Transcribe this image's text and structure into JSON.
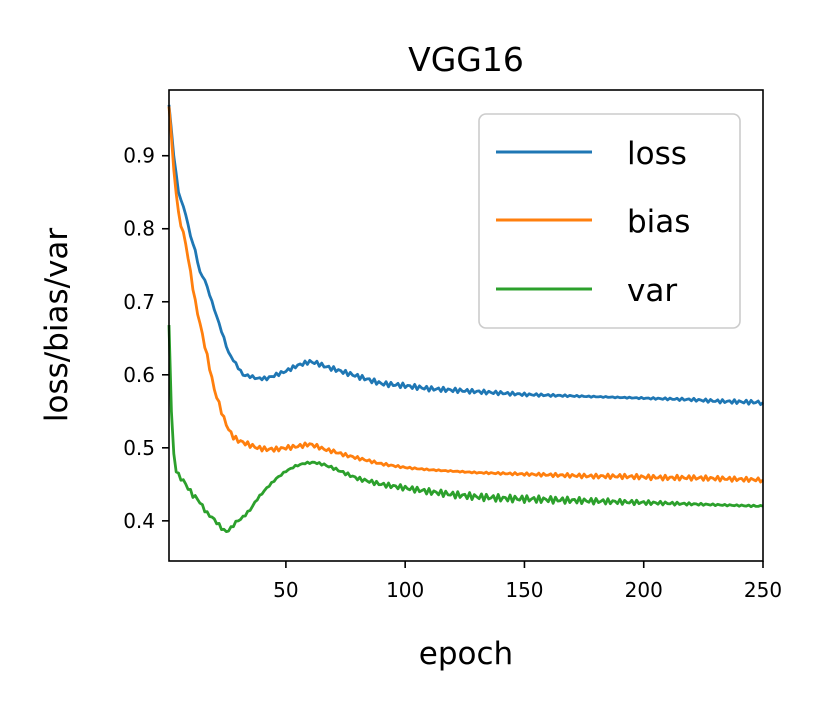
{
  "chart_data": {
    "type": "line",
    "title": "VGG16",
    "xlabel": "epoch",
    "ylabel": "loss/bias/var",
    "xlim": [
      1,
      250
    ],
    "ylim": [
      0.345,
      0.99
    ],
    "xticks": [
      50,
      100,
      150,
      200,
      250
    ],
    "xtick_labels": [
      "50",
      "100",
      "150",
      "200",
      "250"
    ],
    "yticks": [
      0.4,
      0.5,
      0.6,
      0.7,
      0.8,
      0.9
    ],
    "ytick_labels": [
      "0.4",
      "0.5",
      "0.6",
      "0.7",
      "0.8",
      "0.9"
    ],
    "legend_position": "top-right",
    "grid": false,
    "series": [
      {
        "name": "loss",
        "color": "#1f77b4",
        "x": [
          1,
          3,
          5,
          8,
          10,
          12,
          14,
          16,
          18,
          20,
          22,
          24,
          26,
          28,
          30,
          32,
          35,
          38,
          42,
          46,
          50,
          55,
          60,
          63,
          66,
          70,
          75,
          80,
          85,
          90,
          100,
          110,
          120,
          130,
          140,
          150,
          160,
          170,
          180,
          190,
          200,
          210,
          220,
          230,
          240,
          250
        ],
        "y": [
          0.97,
          0.9,
          0.85,
          0.82,
          0.79,
          0.77,
          0.74,
          0.73,
          0.71,
          0.69,
          0.67,
          0.65,
          0.63,
          0.62,
          0.61,
          0.6,
          0.598,
          0.595,
          0.595,
          0.6,
          0.605,
          0.613,
          0.618,
          0.616,
          0.612,
          0.608,
          0.603,
          0.598,
          0.593,
          0.588,
          0.585,
          0.581,
          0.579,
          0.577,
          0.575,
          0.573,
          0.572,
          0.571,
          0.57,
          0.569,
          0.568,
          0.567,
          0.566,
          0.564,
          0.563,
          0.562
        ]
      },
      {
        "name": "bias",
        "color": "#ff7f0e",
        "x": [
          1,
          3,
          5,
          8,
          10,
          12,
          14,
          16,
          18,
          20,
          22,
          24,
          26,
          28,
          30,
          34,
          38,
          42,
          46,
          50,
          55,
          60,
          63,
          66,
          70,
          75,
          80,
          85,
          90,
          100,
          110,
          120,
          130,
          140,
          150,
          160,
          170,
          180,
          190,
          200,
          210,
          220,
          230,
          240,
          250
        ],
        "y": [
          0.97,
          0.88,
          0.82,
          0.78,
          0.74,
          0.7,
          0.67,
          0.64,
          0.61,
          0.58,
          0.56,
          0.54,
          0.525,
          0.515,
          0.51,
          0.505,
          0.5,
          0.498,
          0.498,
          0.5,
          0.502,
          0.505,
          0.502,
          0.498,
          0.495,
          0.49,
          0.486,
          0.482,
          0.478,
          0.473,
          0.47,
          0.468,
          0.466,
          0.465,
          0.464,
          0.463,
          0.462,
          0.461,
          0.461,
          0.46,
          0.459,
          0.459,
          0.458,
          0.457,
          0.456
        ]
      },
      {
        "name": "var",
        "color": "#2ca02c",
        "x": [
          1,
          2,
          3,
          4,
          5,
          7,
          9,
          11,
          13,
          15,
          17,
          19,
          21,
          23,
          25,
          27,
          29,
          32,
          35,
          38,
          42,
          46,
          50,
          54,
          58,
          62,
          66,
          70,
          75,
          80,
          90,
          100,
          110,
          120,
          130,
          140,
          150,
          160,
          170,
          180,
          190,
          200,
          210,
          220,
          230,
          240,
          250
        ],
        "y": [
          0.67,
          0.55,
          0.49,
          0.47,
          0.462,
          0.455,
          0.445,
          0.435,
          0.43,
          0.42,
          0.41,
          0.405,
          0.398,
          0.39,
          0.385,
          0.39,
          0.398,
          0.405,
          0.415,
          0.43,
          0.445,
          0.458,
          0.468,
          0.475,
          0.479,
          0.48,
          0.477,
          0.472,
          0.465,
          0.458,
          0.45,
          0.445,
          0.44,
          0.436,
          0.433,
          0.431,
          0.43,
          0.429,
          0.428,
          0.427,
          0.426,
          0.425,
          0.424,
          0.423,
          0.422,
          0.421,
          0.42
        ]
      }
    ]
  }
}
